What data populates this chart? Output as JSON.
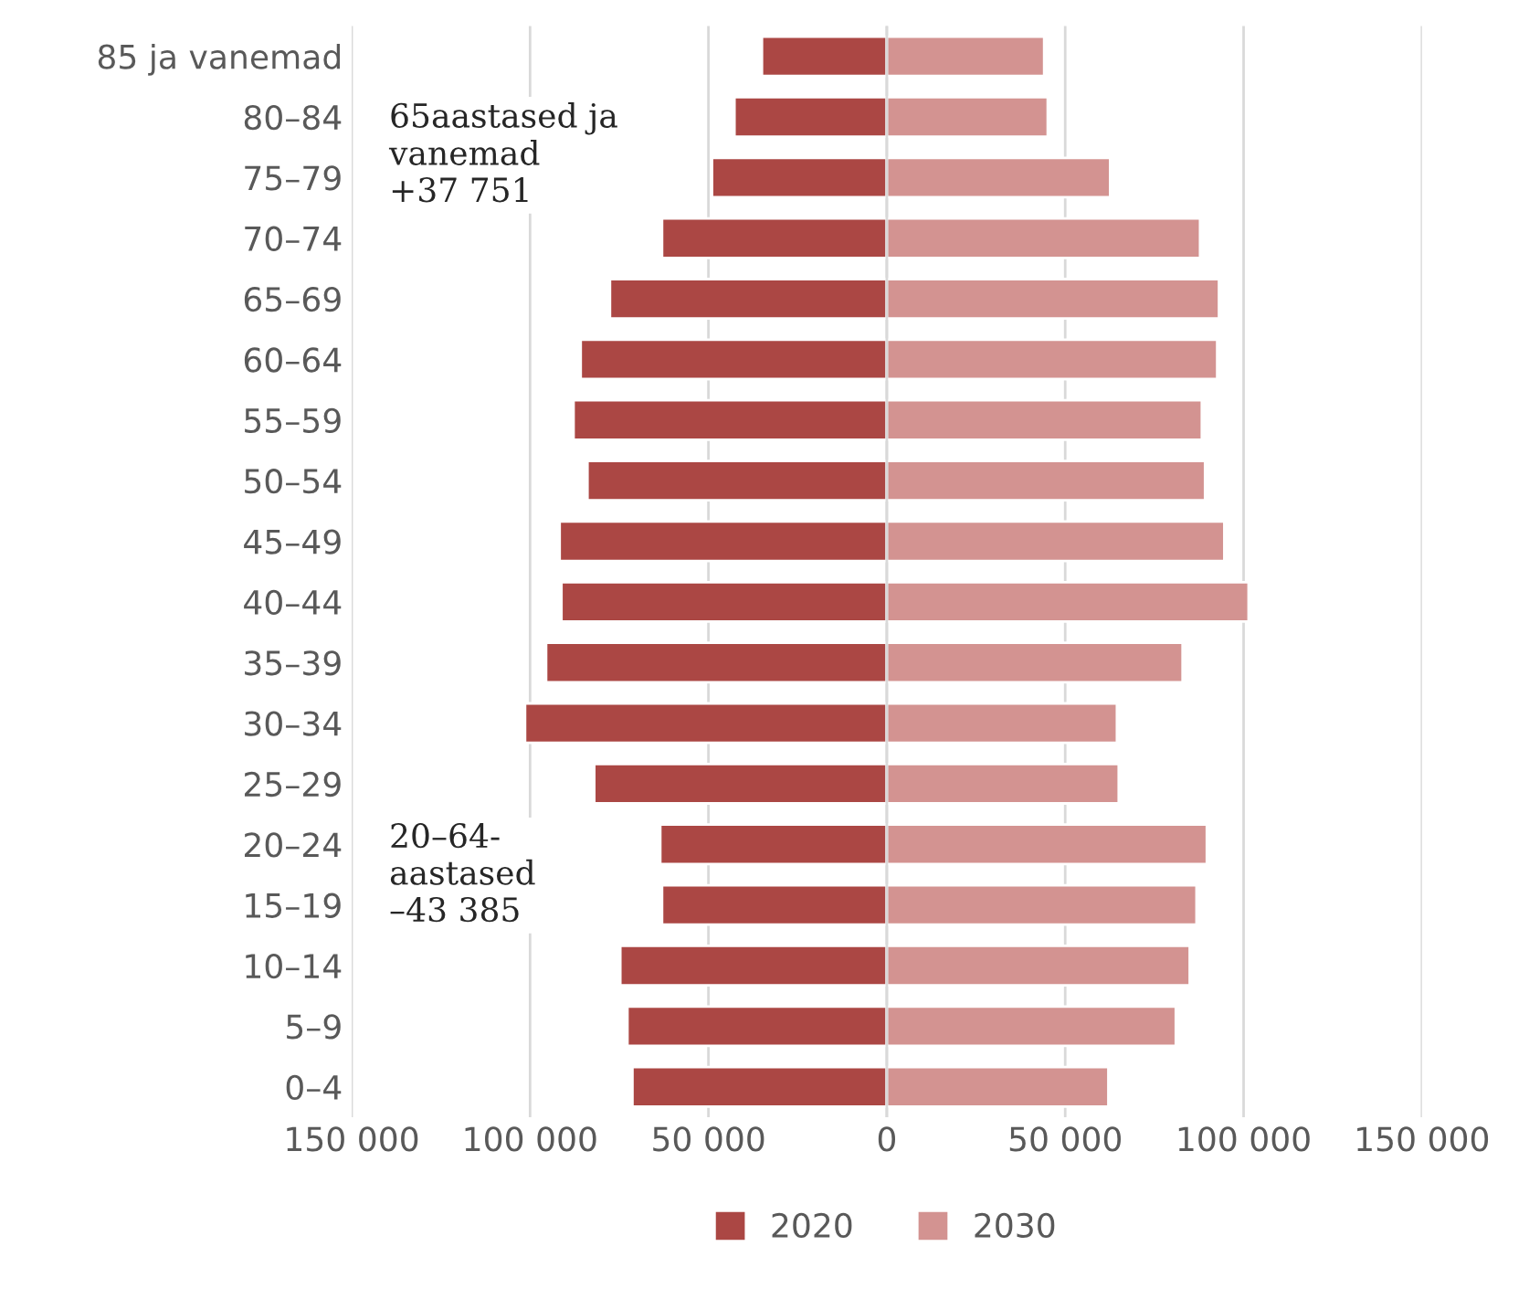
{
  "chart_data": {
    "type": "bar",
    "orientation": "horizontal",
    "categories": [
      "85 ja vanemad",
      "80–84",
      "75–79",
      "70–74",
      "65–69",
      "60–64",
      "55–59",
      "50–54",
      "45–49",
      "40–44",
      "35–39",
      "30–34",
      "25–29",
      "20–24",
      "15–19",
      "10–14",
      "5–9",
      "0–4"
    ],
    "series": [
      {
        "name": "2020",
        "color": "#ab4744",
        "values": [
          -35000,
          -42700,
          -49000,
          -63000,
          -77600,
          -85800,
          -87800,
          -83900,
          -91700,
          -91200,
          -95500,
          -101400,
          -82000,
          -63500,
          -63000,
          -74700,
          -72700,
          -71300
        ]
      },
      {
        "name": "2030",
        "color": "#d39391",
        "values": [
          44100,
          45100,
          62600,
          87800,
          93100,
          92600,
          88300,
          89200,
          94600,
          101400,
          82900,
          64500,
          65000,
          89700,
          86800,
          84900,
          81000,
          62100
        ]
      }
    ],
    "xlim": [
      -150000,
      150000
    ],
    "stacked": true,
    "xticks": [
      {
        "value": -150000,
        "label": "150 000"
      },
      {
        "value": -100000,
        "label": "100 000"
      },
      {
        "value": -50000,
        "label": "50 000"
      },
      0,
      {
        "value": 50000,
        "label": "50 000"
      },
      {
        "value": 100000,
        "label": "100 000"
      },
      {
        "value": 150000,
        "label": "150 000"
      }
    ],
    "grid": "x",
    "legend": "bottom",
    "annotations": [
      "65aastased ja\nvanemad\n+37 751",
      "20–64-\naastased\n–43 385"
    ]
  }
}
